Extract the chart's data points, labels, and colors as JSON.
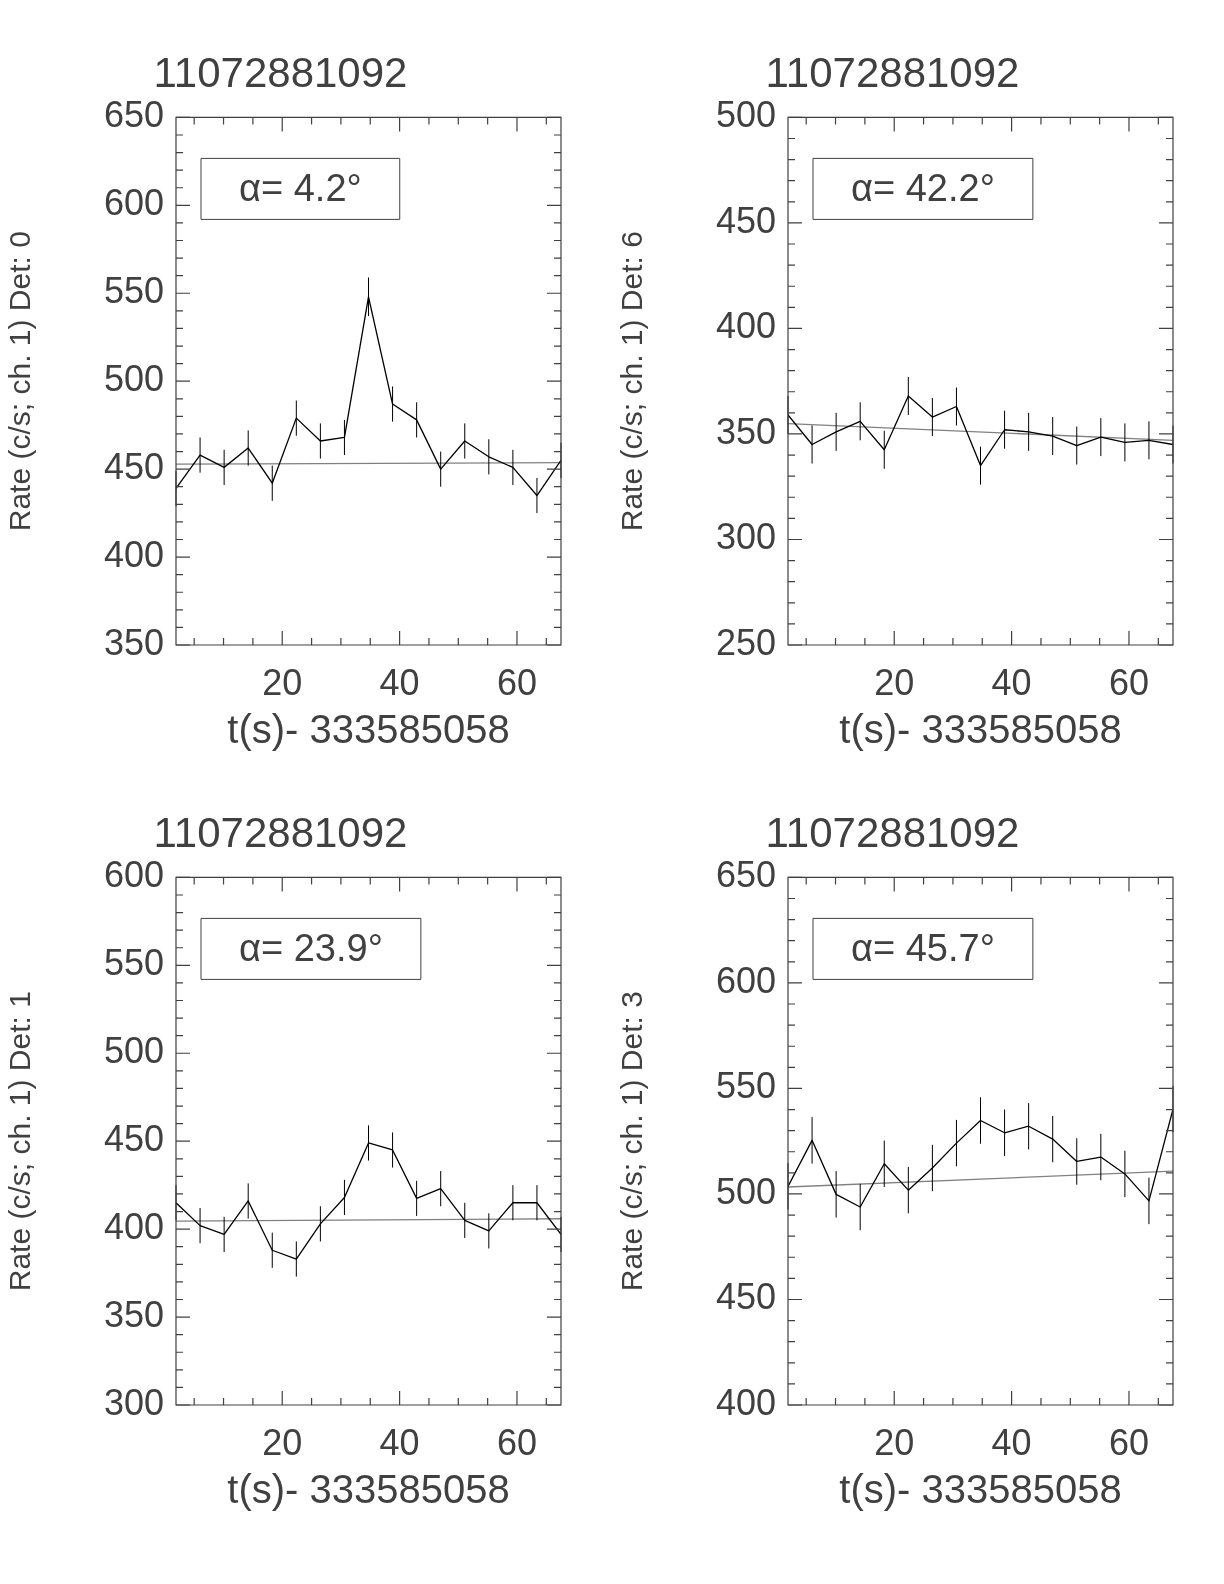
{
  "chart_data": [
    {
      "type": "line",
      "title": "11072881092",
      "xlabel": "t(s)- 333585058",
      "ylabel": "Rate (c/s; ch. 1) Det: 0",
      "annotations": [
        "α= 4.2°"
      ],
      "marker": "none",
      "xlim": [
        1.9,
        67.5
      ],
      "xticks": [
        {
          "value": 5,
          "label": null
        },
        {
          "value": 10,
          "label": null
        },
        {
          "value": 15,
          "label": null
        },
        20,
        {
          "value": 25,
          "label": null
        },
        {
          "value": 30,
          "label": null
        },
        {
          "value": 35,
          "label": null
        },
        40,
        {
          "value": 45,
          "label": null
        },
        {
          "value": 50,
          "label": null
        },
        {
          "value": 55,
          "label": null
        },
        60,
        {
          "value": 65,
          "label": null
        }
      ],
      "ylim": [
        350,
        650
      ],
      "yticks": [
        350,
        {
          "value": 360,
          "label": null
        },
        {
          "value": 370,
          "label": null
        },
        {
          "value": 380,
          "label": null
        },
        {
          "value": 390,
          "label": null
        },
        400,
        {
          "value": 410,
          "label": null
        },
        {
          "value": 420,
          "label": null
        },
        {
          "value": 430,
          "label": null
        },
        {
          "value": 440,
          "label": null
        },
        450,
        {
          "value": 460,
          "label": null
        },
        {
          "value": 470,
          "label": null
        },
        {
          "value": 480,
          "label": null
        },
        {
          "value": 490,
          "label": null
        },
        500,
        {
          "value": 510,
          "label": null
        },
        {
          "value": 520,
          "label": null
        },
        {
          "value": 530,
          "label": null
        },
        {
          "value": 540,
          "label": null
        },
        550,
        {
          "value": 560,
          "label": null
        },
        {
          "value": 570,
          "label": null
        },
        {
          "value": 580,
          "label": null
        },
        {
          "value": 590,
          "label": null
        },
        600,
        {
          "value": 610,
          "label": null
        },
        {
          "value": 620,
          "label": null
        },
        {
          "value": 630,
          "label": null
        },
        {
          "value": 640,
          "label": null
        },
        650
      ],
      "series": [
        {
          "color": "#000000",
          "x": [
            1.9,
            6.0,
            10.1,
            14.2,
            18.3,
            22.4,
            26.5,
            30.6,
            34.7,
            38.8,
            42.9,
            47.0,
            51.1,
            55.2,
            59.3,
            63.4,
            67.5
          ],
          "values": [
            439,
            458,
            451,
            462,
            442,
            479,
            466,
            468,
            548,
            487,
            478,
            450,
            466,
            457,
            451,
            435,
            455
          ],
          "errors": [
            10,
            10,
            10,
            10,
            10,
            10,
            10,
            10,
            11,
            10,
            10,
            10,
            10,
            10,
            10,
            10,
            10
          ]
        },
        {
          "color": "#808080",
          "x": [
            1.9,
            67.5
          ],
          "values": [
            452.8,
            453.7
          ]
        }
      ]
    },
    {
      "type": "line",
      "title": "11072881092",
      "xlabel": "t(s)- 333585058",
      "ylabel": "Rate (c/s; ch. 1) Det: 6",
      "annotations": [
        "α= 42.2°"
      ],
      "marker": "none",
      "xlim": [
        1.9,
        67.5
      ],
      "xticks": [
        {
          "value": 5,
          "label": null
        },
        {
          "value": 10,
          "label": null
        },
        {
          "value": 15,
          "label": null
        },
        20,
        {
          "value": 25,
          "label": null
        },
        {
          "value": 30,
          "label": null
        },
        {
          "value": 35,
          "label": null
        },
        40,
        {
          "value": 45,
          "label": null
        },
        {
          "value": 50,
          "label": null
        },
        {
          "value": 55,
          "label": null
        },
        60,
        {
          "value": 65,
          "label": null
        }
      ],
      "ylim": [
        250,
        500
      ],
      "yticks": [
        250,
        {
          "value": 260,
          "label": null
        },
        {
          "value": 270,
          "label": null
        },
        {
          "value": 280,
          "label": null
        },
        {
          "value": 290,
          "label": null
        },
        300,
        {
          "value": 310,
          "label": null
        },
        {
          "value": 320,
          "label": null
        },
        {
          "value": 330,
          "label": null
        },
        {
          "value": 340,
          "label": null
        },
        350,
        {
          "value": 360,
          "label": null
        },
        {
          "value": 370,
          "label": null
        },
        {
          "value": 380,
          "label": null
        },
        {
          "value": 390,
          "label": null
        },
        400,
        {
          "value": 410,
          "label": null
        },
        {
          "value": 420,
          "label": null
        },
        {
          "value": 430,
          "label": null
        },
        {
          "value": 440,
          "label": null
        },
        450,
        {
          "value": 460,
          "label": null
        },
        {
          "value": 470,
          "label": null
        },
        {
          "value": 480,
          "label": null
        },
        {
          "value": 490,
          "label": null
        },
        500
      ],
      "series": [
        {
          "color": "#000000",
          "x": [
            1.9,
            6.0,
            10.1,
            14.2,
            18.3,
            22.4,
            26.5,
            30.6,
            34.7,
            38.8,
            42.9,
            47.0,
            51.1,
            55.2,
            59.3,
            63.4,
            67.5
          ],
          "values": [
            359,
            345,
            351,
            356,
            342.5,
            368,
            358,
            363,
            335,
            352,
            351,
            349,
            344.5,
            348.5,
            346,
            347,
            345
          ],
          "errors": [
            9,
            9,
            9,
            9,
            9,
            9,
            9,
            9,
            9,
            9,
            9,
            9,
            9,
            9,
            9,
            9,
            9
          ]
        },
        {
          "color": "#808080",
          "x": [
            1.9,
            67.5
          ],
          "values": [
            354.9,
            347
          ]
        }
      ]
    },
    {
      "type": "line",
      "title": "11072881092",
      "xlabel": "t(s)- 333585058",
      "ylabel": "Rate (c/s; ch. 1) Det: 1",
      "annotations": [
        "α= 23.9°"
      ],
      "marker": "none",
      "xlim": [
        1.9,
        67.5
      ],
      "xticks": [
        {
          "value": 5,
          "label": null
        },
        {
          "value": 10,
          "label": null
        },
        {
          "value": 15,
          "label": null
        },
        20,
        {
          "value": 25,
          "label": null
        },
        {
          "value": 30,
          "label": null
        },
        {
          "value": 35,
          "label": null
        },
        40,
        {
          "value": 45,
          "label": null
        },
        {
          "value": 50,
          "label": null
        },
        {
          "value": 55,
          "label": null
        },
        60,
        {
          "value": 65,
          "label": null
        }
      ],
      "ylim": [
        300,
        600
      ],
      "yticks": [
        300,
        {
          "value": 310,
          "label": null
        },
        {
          "value": 320,
          "label": null
        },
        {
          "value": 330,
          "label": null
        },
        {
          "value": 340,
          "label": null
        },
        350,
        {
          "value": 360,
          "label": null
        },
        {
          "value": 370,
          "label": null
        },
        {
          "value": 380,
          "label": null
        },
        {
          "value": 390,
          "label": null
        },
        400,
        {
          "value": 410,
          "label": null
        },
        {
          "value": 420,
          "label": null
        },
        {
          "value": 430,
          "label": null
        },
        {
          "value": 440,
          "label": null
        },
        450,
        {
          "value": 460,
          "label": null
        },
        {
          "value": 470,
          "label": null
        },
        {
          "value": 480,
          "label": null
        },
        {
          "value": 490,
          "label": null
        },
        500,
        {
          "value": 510,
          "label": null
        },
        {
          "value": 520,
          "label": null
        },
        {
          "value": 530,
          "label": null
        },
        {
          "value": 540,
          "label": null
        },
        550,
        {
          "value": 560,
          "label": null
        },
        {
          "value": 570,
          "label": null
        },
        {
          "value": 580,
          "label": null
        },
        {
          "value": 590,
          "label": null
        },
        600
      ],
      "series": [
        {
          "color": "#000000",
          "x": [
            1.9,
            6.0,
            10.1,
            14.2,
            18.3,
            22.4,
            26.5,
            30.6,
            34.7,
            38.8,
            42.9,
            47.0,
            51.1,
            55.2,
            59.3,
            63.4,
            67.5
          ],
          "values": [
            415,
            402,
            397,
            416,
            388,
            383,
            403,
            418,
            449,
            445,
            417.5,
            423,
            405,
            399,
            415,
            415,
            397
          ],
          "errors": [
            10,
            10,
            10,
            10,
            10,
            10,
            10,
            10,
            10,
            10,
            10,
            10,
            10,
            10,
            10,
            10,
            10
          ]
        },
        {
          "color": "#808080",
          "x": [
            1.9,
            67.5
          ],
          "values": [
            404.5,
            405.9
          ]
        }
      ]
    },
    {
      "type": "line",
      "title": "11072881092",
      "xlabel": "t(s)- 333585058",
      "ylabel": "Rate (c/s; ch. 1) Det: 3",
      "annotations": [
        "α= 45.7°"
      ],
      "marker": "none",
      "xlim": [
        1.9,
        67.5
      ],
      "xticks": [
        {
          "value": 5,
          "label": null
        },
        {
          "value": 10,
          "label": null
        },
        {
          "value": 15,
          "label": null
        },
        20,
        {
          "value": 25,
          "label": null
        },
        {
          "value": 30,
          "label": null
        },
        {
          "value": 35,
          "label": null
        },
        40,
        {
          "value": 45,
          "label": null
        },
        {
          "value": 50,
          "label": null
        },
        {
          "value": 55,
          "label": null
        },
        60,
        {
          "value": 65,
          "label": null
        }
      ],
      "ylim": [
        400,
        650
      ],
      "yticks": [
        400,
        {
          "value": 410,
          "label": null
        },
        {
          "value": 420,
          "label": null
        },
        {
          "value": 430,
          "label": null
        },
        {
          "value": 440,
          "label": null
        },
        450,
        {
          "value": 460,
          "label": null
        },
        {
          "value": 470,
          "label": null
        },
        {
          "value": 480,
          "label": null
        },
        {
          "value": 490,
          "label": null
        },
        500,
        {
          "value": 510,
          "label": null
        },
        {
          "value": 520,
          "label": null
        },
        {
          "value": 530,
          "label": null
        },
        {
          "value": 540,
          "label": null
        },
        550,
        {
          "value": 560,
          "label": null
        },
        {
          "value": 570,
          "label": null
        },
        {
          "value": 580,
          "label": null
        },
        {
          "value": 590,
          "label": null
        },
        600,
        {
          "value": 610,
          "label": null
        },
        {
          "value": 620,
          "label": null
        },
        {
          "value": 630,
          "label": null
        },
        {
          "value": 640,
          "label": null
        },
        650
      ],
      "series": [
        {
          "color": "#000000",
          "x": [
            1.9,
            6.0,
            10.1,
            14.2,
            18.3,
            22.4,
            26.5,
            30.6,
            34.7,
            38.8,
            42.9,
            47.0,
            51.1,
            55.2,
            59.3,
            63.4,
            67.5
          ],
          "values": [
            503.6,
            525.4,
            499.8,
            493.8,
            514.3,
            501.8,
            512.3,
            524.1,
            534.8,
            529,
            532.1,
            526,
            515.4,
            517.5,
            509.5,
            496.7,
            540.2
          ],
          "errors": [
            11,
            11,
            11,
            11,
            11,
            11,
            11,
            11,
            11,
            11,
            11,
            11,
            11,
            11,
            11,
            11,
            11
          ]
        },
        {
          "color": "#808080",
          "x": [
            1.9,
            67.5
          ],
          "values": [
            503.3,
            510.8
          ]
        }
      ]
    }
  ]
}
